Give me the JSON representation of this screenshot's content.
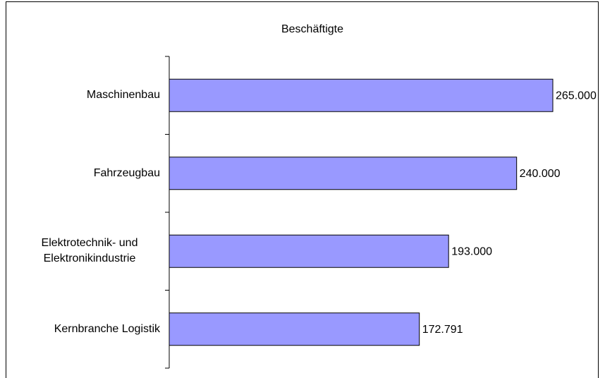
{
  "chart_data": {
    "type": "bar",
    "orientation": "horizontal",
    "title": "Beschäftigte",
    "categories": [
      "Maschinenbau",
      "Fahrzeugbau",
      "Elektrotechnik- und Elektronikindustrie",
      "Kernbranche Logistik"
    ],
    "values": [
      265000,
      240000,
      193000,
      172791
    ],
    "value_labels": [
      "265.000",
      "240.000",
      "193.000",
      "172.791"
    ],
    "color": "#9999ff"
  }
}
